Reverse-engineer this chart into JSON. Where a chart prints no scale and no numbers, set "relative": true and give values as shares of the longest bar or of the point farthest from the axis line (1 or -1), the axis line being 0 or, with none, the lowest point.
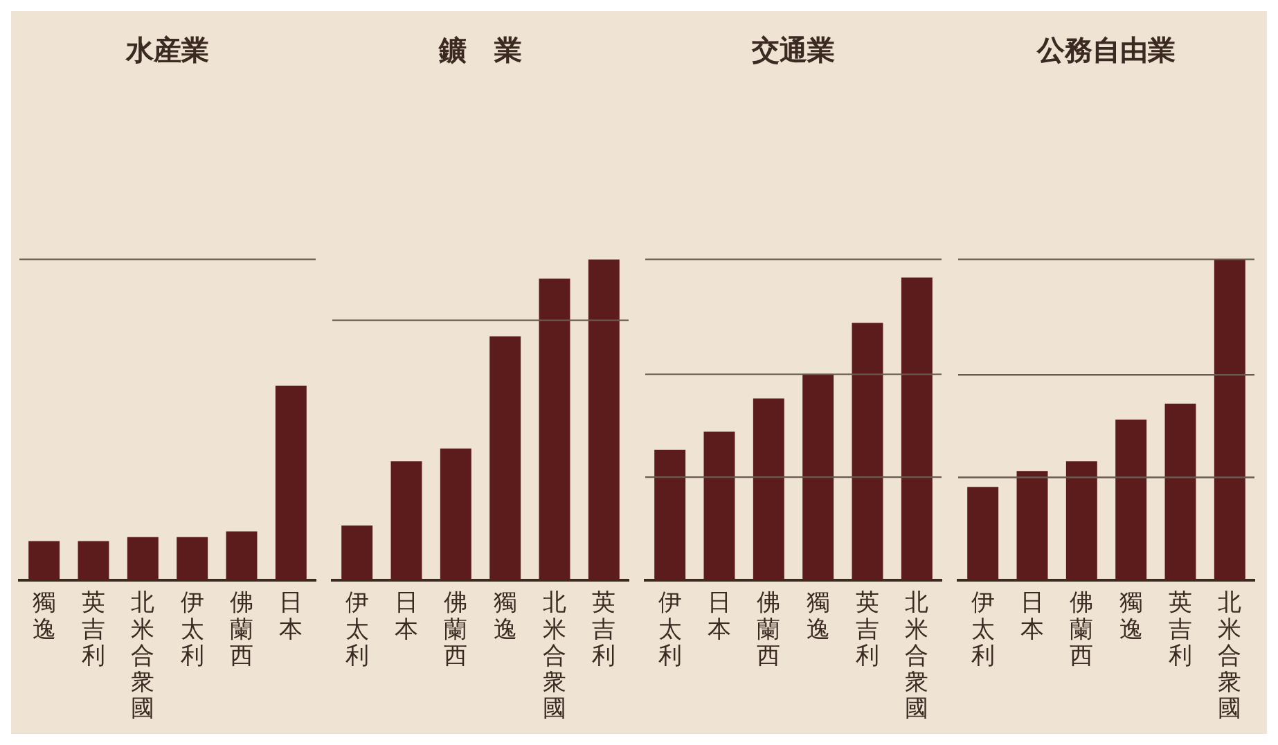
{
  "chart_data": [
    {
      "type": "bar",
      "title": "水産業",
      "relative": true,
      "categories": [
        "獨逸",
        "英吉利",
        "北米合衆國",
        "伊太利",
        "佛蘭西",
        "日本"
      ],
      "values": [
        0.2,
        0.2,
        0.22,
        0.22,
        0.25,
        1
      ],
      "color": "#5c1c1c",
      "ref_lines": [
        {
          "axis": "y",
          "value": 1.65
        }
      ]
    },
    {
      "type": "bar",
      "title": "鑛　業",
      "relative": true,
      "categories": [
        "伊太利",
        "日本",
        "佛蘭西",
        "獨逸",
        "北米合衆國",
        "英吉利"
      ],
      "values": [
        0.17,
        0.37,
        0.41,
        0.76,
        0.94,
        1
      ],
      "color": "#5c1c1c",
      "ref_lines": [
        {
          "axis": "y",
          "value": 0.81
        }
      ]
    },
    {
      "type": "bar",
      "title": "交通業",
      "relative": true,
      "categories": [
        "伊太利",
        "日本",
        "佛蘭西",
        "獨逸",
        "英吉利",
        "北米合衆國"
      ],
      "values": [
        0.43,
        0.49,
        0.6,
        0.68,
        0.85,
        1
      ],
      "color": "#5c1c1c",
      "ref_lines": [
        {
          "axis": "y",
          "value": 0.34
        },
        {
          "axis": "y",
          "value": 0.68
        },
        {
          "axis": "y",
          "value": 1.06
        }
      ]
    },
    {
      "type": "bar",
      "title": "公務自由業",
      "relative": true,
      "categories": [
        "伊太利",
        "日本",
        "佛蘭西",
        "獨逸",
        "英吉利",
        "北米合衆國"
      ],
      "values": [
        0.29,
        0.34,
        0.37,
        0.5,
        0.55,
        1
      ],
      "color": "#5c1c1c",
      "ref_lines": [
        {
          "axis": "y",
          "value": 0.32
        },
        {
          "axis": "y",
          "value": 0.64
        },
        {
          "axis": "y",
          "value": 1
        }
      ]
    }
  ]
}
